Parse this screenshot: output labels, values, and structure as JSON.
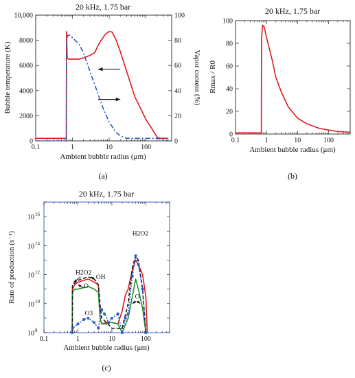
{
  "chart_data": [
    {
      "id": "a",
      "type": "line",
      "panel_label": "(a)",
      "title": "20 kHz, 1.75 bar",
      "xlabel": "Ambient bubble radius (μm)",
      "ylabel": "Bubble temperature (K)",
      "y2label": "Vapor content (%)",
      "xscale": "log",
      "xlim": [
        0.1,
        500
      ],
      "xticks": [
        "0.1",
        "1",
        "10",
        "100"
      ],
      "ylim": [
        0,
        10000
      ],
      "yticks": [
        "0",
        "2000",
        "4000",
        "6000",
        "8000",
        "10,000"
      ],
      "y2lim": [
        0,
        100
      ],
      "y2ticks": [
        "0",
        "20",
        "40",
        "60",
        "80",
        "100"
      ],
      "series": [
        {
          "axis": "left",
          "color": "#dd1a1a",
          "style": "solid",
          "x": [
            0.1,
            0.5,
            0.68,
            0.69,
            0.72,
            0.8,
            1.0,
            1.5,
            2,
            3,
            4,
            5,
            6,
            8,
            10,
            12,
            15,
            20,
            30,
            50,
            100,
            150,
            200,
            250,
            300,
            400
          ],
          "y": [
            200,
            200,
            200,
            8700,
            6600,
            6500,
            6500,
            6500,
            6600,
            6800,
            7000,
            7600,
            8000,
            8500,
            8700,
            8650,
            8100,
            7100,
            5500,
            3500,
            1700,
            900,
            300,
            200,
            200,
            200
          ]
        },
        {
          "axis": "right",
          "color": "#2a56c6",
          "style": "dashdot",
          "x": [
            0.1,
            0.5,
            0.68,
            0.69,
            0.75,
            0.85,
            1.0,
            1.5,
            2,
            3,
            4,
            5,
            7,
            10,
            15,
            20,
            30,
            50,
            100,
            200,
            300,
            400
          ],
          "y": [
            0,
            0,
            0,
            80,
            84,
            84,
            82,
            77,
            70,
            55,
            45,
            37,
            25,
            15,
            7,
            4,
            2,
            2,
            2,
            2,
            1,
            0
          ]
        }
      ],
      "annotations": [
        {
          "type": "arrow",
          "direction": "left",
          "x_from": 20,
          "x_to": 5,
          "y": 5700,
          "axis": "left"
        },
        {
          "type": "arrow",
          "direction": "right",
          "x_from": 5,
          "x_to": 20,
          "y": 3300,
          "axis": "left"
        }
      ]
    },
    {
      "id": "b",
      "type": "line",
      "panel_label": "(b)",
      "title": "20 kHz, 1.75 bar",
      "xlabel": "Ambient bubble radius (μm)",
      "ylabel": "Rmax / R0",
      "xscale": "log",
      "xlim": [
        0.1,
        500
      ],
      "xticks": [
        "0.1",
        "1",
        "10",
        "100"
      ],
      "ylim": [
        0,
        100
      ],
      "yticks": [
        "0",
        "20",
        "40",
        "60",
        "80",
        "100"
      ],
      "series": [
        {
          "color": "#dd1a1a",
          "style": "solid",
          "x": [
            0.1,
            0.5,
            0.68,
            0.69,
            0.75,
            0.85,
            1.0,
            1.5,
            2,
            3,
            5,
            10,
            20,
            50,
            100,
            200,
            500
          ],
          "y": [
            1,
            1,
            1,
            85,
            96,
            94,
            85,
            66,
            50,
            37,
            24,
            14,
            9,
            5,
            3.5,
            2.2,
            1.5
          ]
        }
      ]
    },
    {
      "id": "c",
      "type": "line",
      "panel_label": "(c)",
      "title": "20 kHz, 1.75 bar",
      "xlabel": "Ambient bubble radius (μm)",
      "ylabel": "Rate of production (s⁻¹)",
      "xscale": "log",
      "yscale": "log",
      "xlim": [
        0.1,
        500
      ],
      "xticks": [
        "0.1",
        "1",
        "10",
        "100"
      ],
      "ylim": [
        100000000.0,
        1e+17
      ],
      "ytick_bases": [
        "10",
        "10",
        "10",
        "10",
        "10"
      ],
      "ytick_exponents": [
        "8",
        "10",
        "12",
        "14",
        "16"
      ],
      "series": [
        {
          "color": "#dd1a1a",
          "style": "solid",
          "x": [
            0.68,
            0.69,
            0.8,
            1.0,
            2,
            3,
            4,
            4.5,
            5,
            7,
            10,
            15,
            20,
            25,
            30,
            40,
            50,
            60,
            80,
            100,
            110
          ],
          "y": [
            100000000.0,
            100000000000.0,
            200000000000.0,
            300000000000.0,
            500000000000.0,
            300000000000.0,
            200000000000.0,
            1000000000.0,
            400000000.0,
            500000000.0,
            500000000.0,
            400000000.0,
            3000000000.0,
            40000000000.0,
            100000000000.0,
            2000000000000.0,
            10000000000000.0,
            5000000000000.0,
            1000000000000.0,
            30000000000.0,
            100000000.0
          ]
        },
        {
          "color": "#1f8f2e",
          "style": "solid",
          "x": [
            0.68,
            0.69,
            0.8,
            1.0,
            2,
            3,
            4,
            4.5,
            5,
            7,
            8,
            10,
            15,
            20,
            30,
            40,
            50,
            60,
            80,
            100
          ],
          "y": [
            100000000.0,
            60000000000.0,
            100000000000.0,
            100000000000.0,
            150000000000.0,
            100000000000.0,
            60000000000.0,
            1000000000.0,
            400000000.0,
            400000000.0,
            500000000.0,
            500000000.0,
            400000000.0,
            100000000.0,
            1000000000.0,
            30000000000.0,
            500000000000.0,
            100000000000.0,
            5000000000.0,
            100000000.0
          ]
        },
        {
          "color": "#1a1a1a",
          "style": "dashed",
          "x": [
            0.68,
            0.69,
            1.0,
            2,
            3,
            4,
            4.5,
            5,
            7,
            10,
            20,
            30,
            40,
            50,
            60,
            80,
            100
          ],
          "y": [
            100000000.0,
            200000000000.0,
            400000000000.0,
            700000000000.0,
            500000000000.0,
            200000000000.0,
            8000000000.0,
            1000000000.0,
            500000000.0,
            200000000.0,
            200000000.0,
            10000000000.0,
            3000000000000.0,
            20000000000000.0,
            10000000000000.0,
            100000000000.0,
            100000000.0
          ]
        },
        {
          "color": "#2a56c6",
          "style": "dotted",
          "markers": true,
          "x": [
            0.68,
            0.7,
            1.0,
            1.5,
            2,
            3,
            4,
            5,
            6,
            8,
            10,
            15,
            20,
            25,
            30,
            40,
            50,
            60,
            80,
            100
          ],
          "y": [
            100000000.0,
            200000000.0,
            400000000.0,
            800000000.0,
            1000000000.0,
            500000000.0,
            200000000.0,
            4000000000.0,
            2000000000.0,
            500000000.0,
            1000000000.0,
            2000000000.0,
            100000000.0,
            1000000000.0,
            2000000000.0,
            800000000000.0,
            20000000000000.0,
            5000000000000.0,
            100000000000.0,
            100000000.0
          ]
        }
      ],
      "annotations": [
        {
          "text": "H2O2",
          "x": 0.85,
          "y": 1000000000000.0,
          "anchor": "start"
        },
        {
          "text": "OH",
          "x": 3.4,
          "y": 500000000000.0,
          "anchor": "start"
        },
        {
          "text": "O",
          "x": 1.5,
          "y": 120000000000.0,
          "anchor": "start"
        },
        {
          "text": "O3",
          "x": 1.6,
          "y": 1600000000.0,
          "anchor": "start"
        },
        {
          "text": "H2O2",
          "x": 40,
          "y": 500000000000000.0,
          "anchor": "start"
        },
        {
          "text": "O",
          "x": 48,
          "y": 22000000000.0,
          "anchor": "start"
        },
        {
          "type": "arrow",
          "x_from": 1.2,
          "x_to": 0.75,
          "y_from": 700000000000.0,
          "y_to": 300000000000.0
        },
        {
          "type": "arrow",
          "x_from": 3.0,
          "x_to": 2.4,
          "y_from": 500000000000.0,
          "y_to": 700000000000.0
        },
        {
          "type": "arrow",
          "x_from": 1.5,
          "x_to": 1.0,
          "y_from": 120000000000.0,
          "y_to": 200000000000.0
        },
        {
          "type": "arrow",
          "x_from": 52,
          "x_to": 40,
          "y_from": 15000000000.0,
          "y_to": 10000000000.0
        },
        {
          "type": "arrow",
          "x_from": 55,
          "x_to": 68,
          "y_from": 15000000000.0,
          "y_to": 10000000000.0
        }
      ]
    }
  ]
}
